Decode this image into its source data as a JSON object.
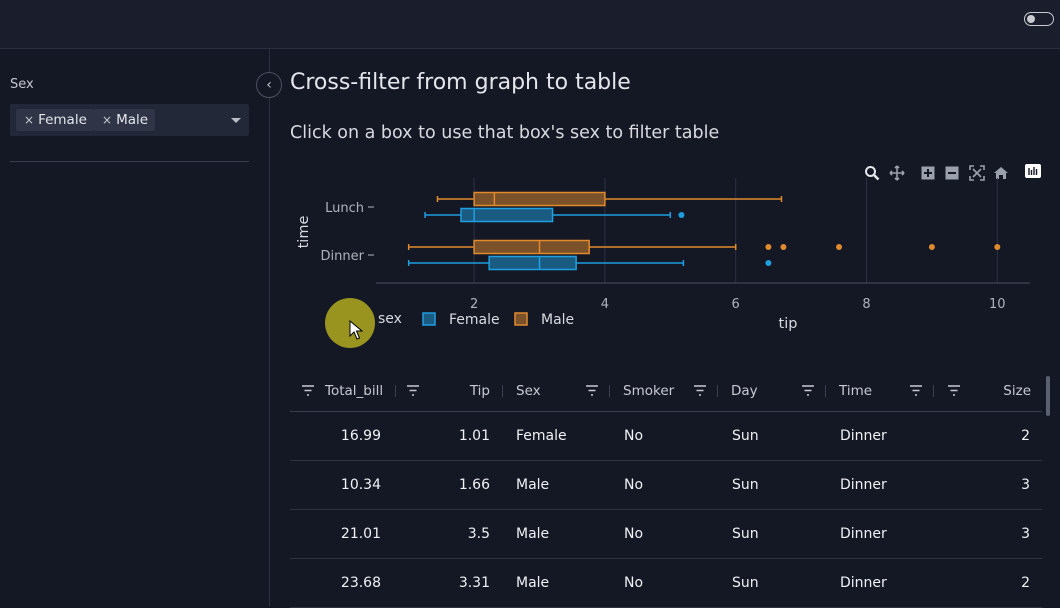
{
  "sidebar": {
    "filter_label": "Sex",
    "selected": [
      {
        "label": "Female",
        "remove": "×"
      },
      {
        "label": "Male",
        "remove": "×"
      }
    ]
  },
  "main": {
    "title": "Cross-filter from graph to table",
    "subtitle": "Click on a box to use that box's sex to filter table"
  },
  "chart_data": {
    "type": "box",
    "orientation": "horizontal",
    "xlabel": "tip",
    "ylabel": "time",
    "categories": [
      "Lunch",
      "Dinner"
    ],
    "x_ticks": [
      "2",
      "4",
      "6",
      "8",
      "10"
    ],
    "xlim": [
      0.5,
      10.5
    ],
    "legend_title": "sex",
    "legend_position": "bottom",
    "grid": true,
    "series": [
      {
        "name": "Female",
        "color": "#1f9ee0",
        "boxes": [
          {
            "category": "Lunch",
            "min": 1.25,
            "q1": 1.8,
            "median": 2.0,
            "q3": 3.2,
            "max": 5.0,
            "outliers": [
              5.17
            ]
          },
          {
            "category": "Dinner",
            "min": 1.0,
            "q1": 2.23,
            "median": 3.0,
            "q3": 3.56,
            "max": 5.2,
            "outliers": [
              6.5
            ]
          }
        ]
      },
      {
        "name": "Male",
        "color": "#e08a2e",
        "boxes": [
          {
            "category": "Lunch",
            "min": 1.44,
            "q1": 2.0,
            "median": 2.31,
            "q3": 4.0,
            "max": 6.7,
            "outliers": []
          },
          {
            "category": "Dinner",
            "min": 1.0,
            "q1": 2.0,
            "median": 3.0,
            "q3": 3.76,
            "max": 6.0,
            "outliers": [
              6.5,
              6.73,
              7.58,
              9.0,
              10.0
            ]
          }
        ]
      }
    ]
  },
  "table": {
    "columns": [
      "Total_bill",
      "Tip",
      "Sex",
      "Smoker",
      "Day",
      "Time",
      "Size"
    ],
    "rows": [
      [
        "16.99",
        "1.01",
        "Female",
        "No",
        "Sun",
        "Dinner",
        "2"
      ],
      [
        "10.34",
        "1.66",
        "Male",
        "No",
        "Sun",
        "Dinner",
        "3"
      ],
      [
        "21.01",
        "3.5",
        "Male",
        "No",
        "Sun",
        "Dinner",
        "3"
      ],
      [
        "23.68",
        "3.31",
        "Male",
        "No",
        "Sun",
        "Dinner",
        "2"
      ]
    ]
  },
  "icons": {
    "collapse": "‹",
    "zoom": "zoom-icon",
    "pan": "pan-icon",
    "zoom_in": "zoom-in-icon",
    "zoom_out": "zoom-out-icon",
    "autoscale": "autoscale-icon",
    "reset": "home-icon",
    "plotly": "plotly-logo-icon"
  }
}
